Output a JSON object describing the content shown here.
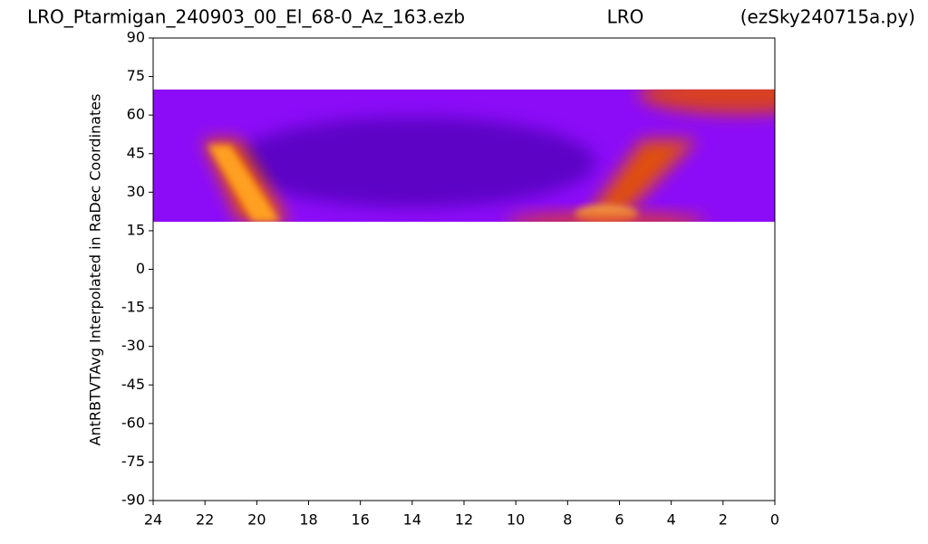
{
  "chart_data": {
    "type": "heatmap",
    "title": "LRO_Ptarmigan_240903_00_El_68-0_Az_163.ezb",
    "subtitle": "LRO",
    "annotation": "(ezSky240715a.py)",
    "ylabel": "AntRBTVTAvg Interpolated in RaDec Coordinates",
    "xlim": [
      24,
      0
    ],
    "xticks": [
      24,
      22,
      20,
      18,
      16,
      14,
      12,
      10,
      8,
      6,
      4,
      2,
      0
    ],
    "ylim": [
      -90,
      90
    ],
    "yticks": [
      90,
      75,
      60,
      45,
      30,
      15,
      0,
      -15,
      -30,
      -45,
      -60,
      -75,
      -90
    ],
    "dec_range": [
      18.5,
      70
    ]
  }
}
